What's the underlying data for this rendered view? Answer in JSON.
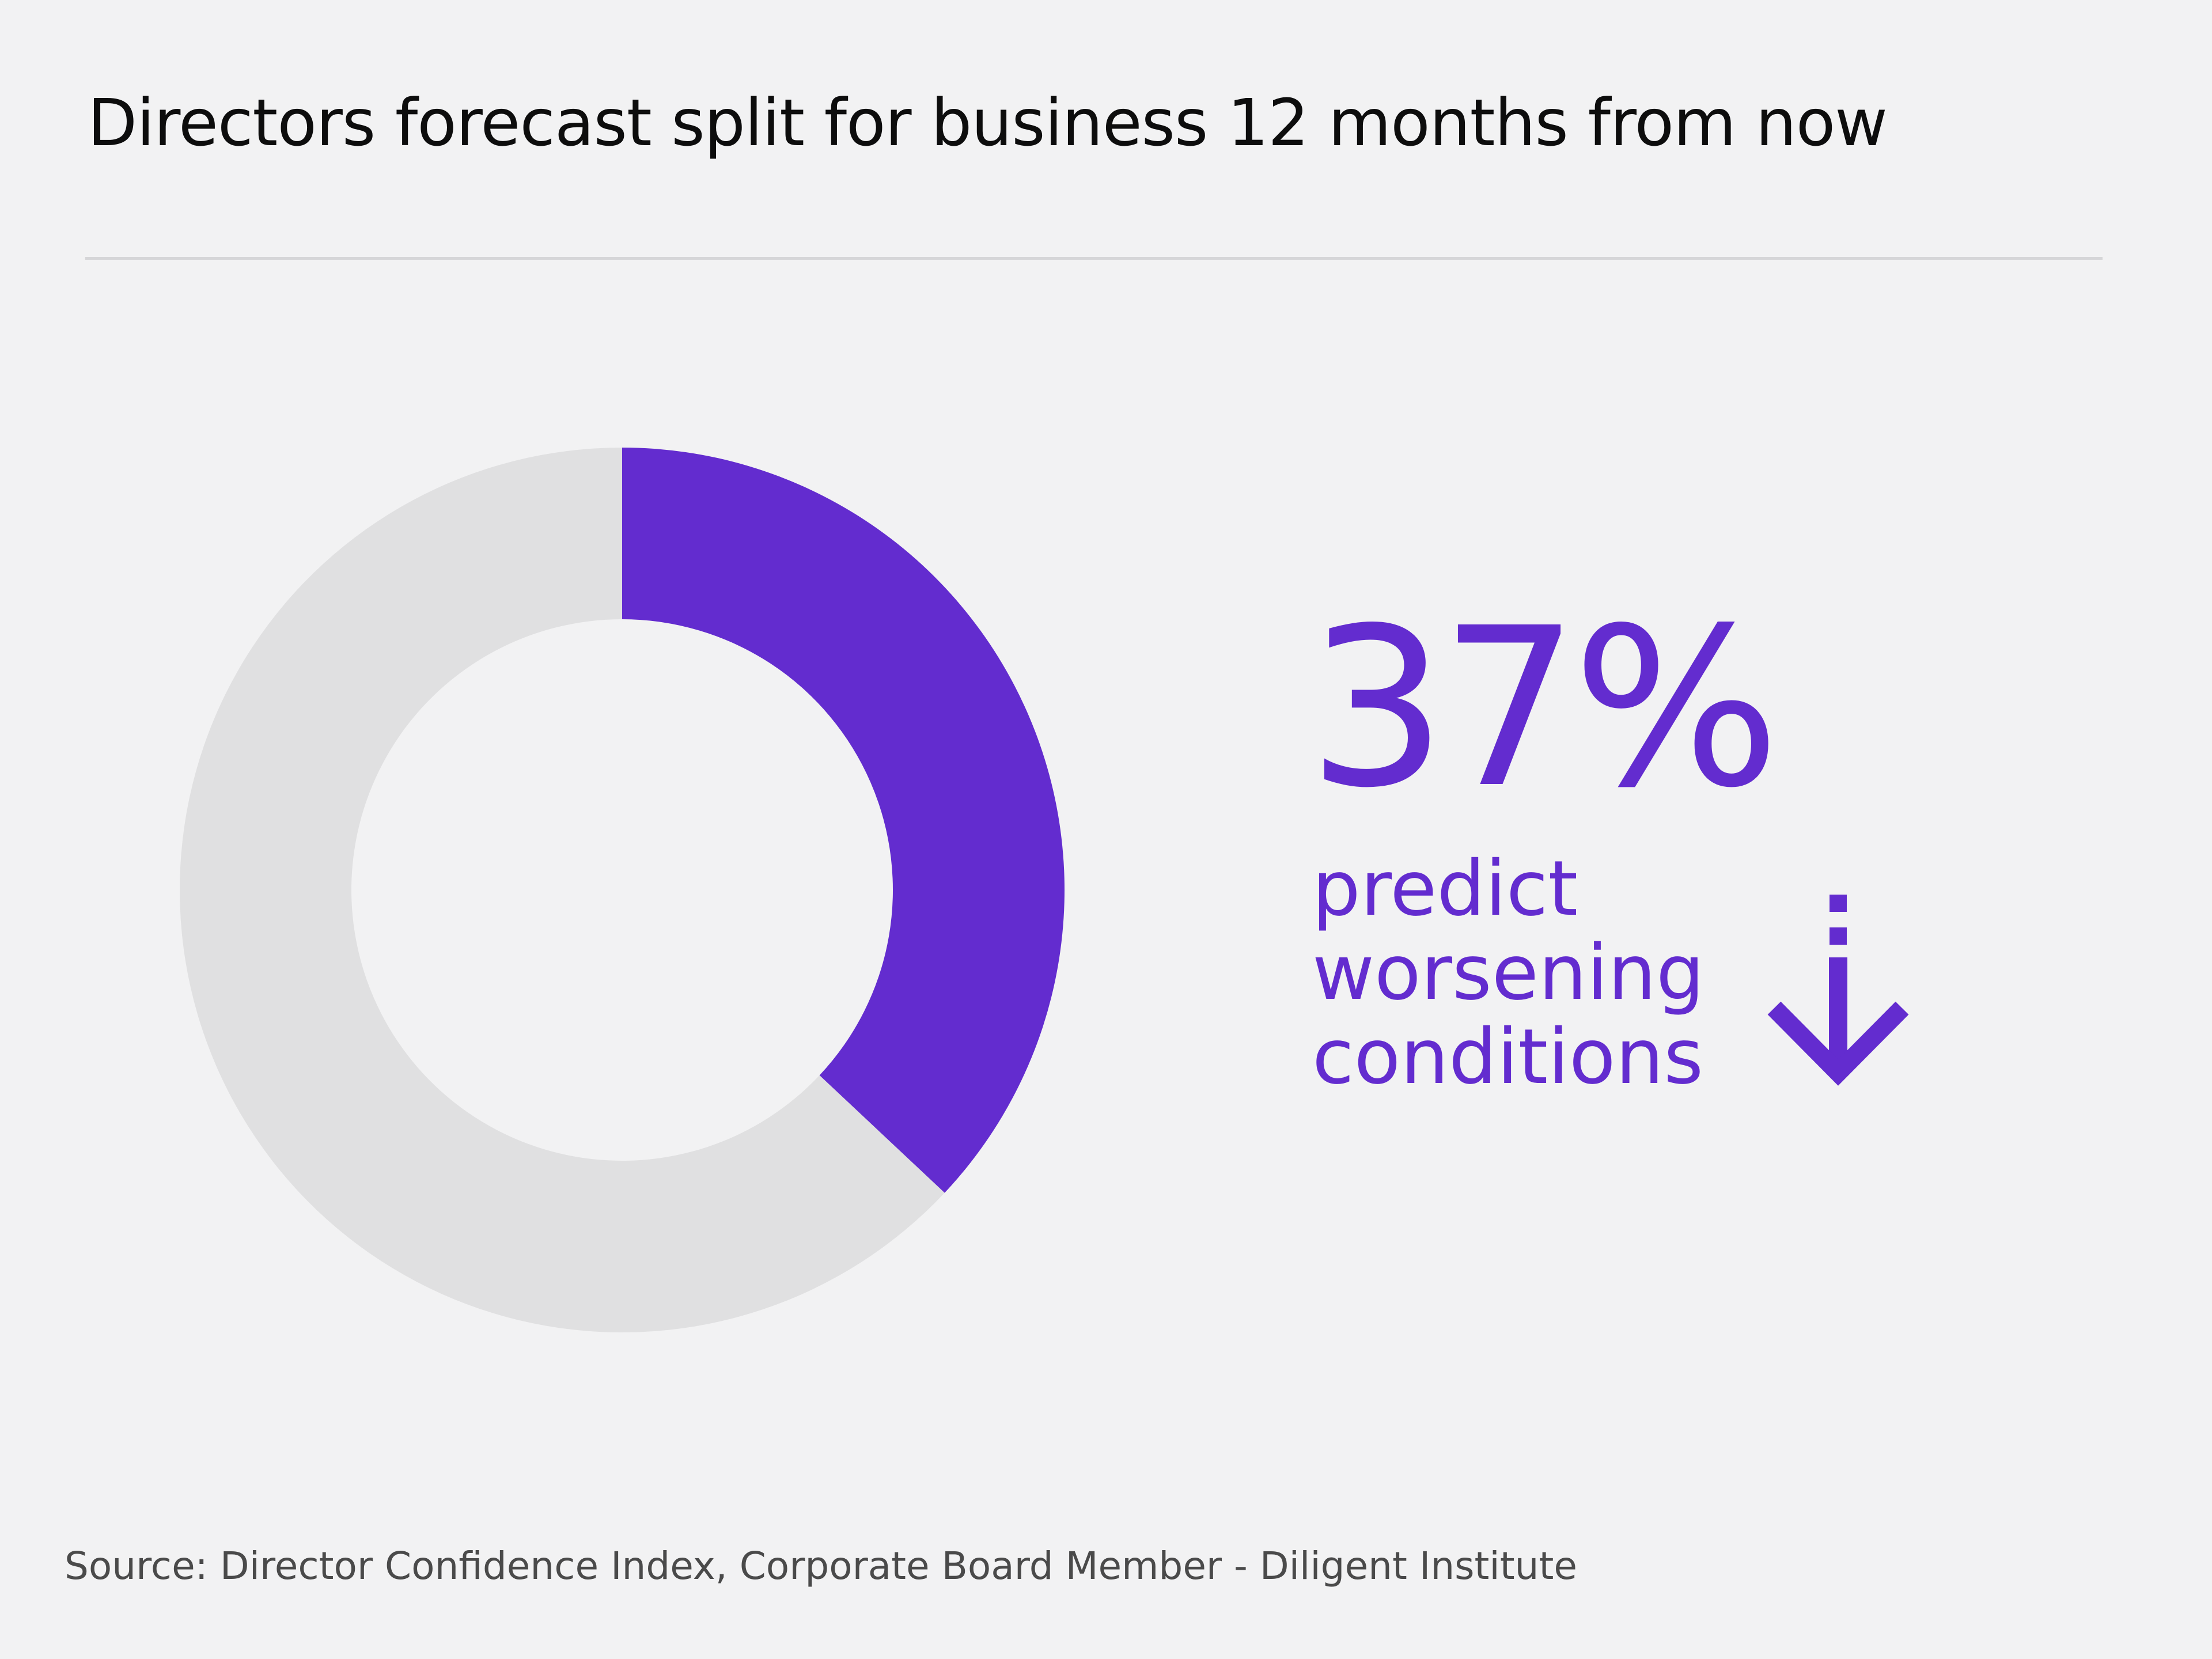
{
  "chart_data": {
    "type": "pie",
    "style": "donut",
    "title": "Directors forecast split for business 12 months from now",
    "slices": [
      {
        "label": "predict worsening conditions",
        "value": 37,
        "color": "#632ccf"
      },
      {
        "value": 63,
        "color": "#e0e0e1"
      }
    ],
    "highlight": {
      "value_text": "37%",
      "caption_lines": [
        "predict",
        "worsening",
        "conditions"
      ],
      "icon": "arrow-down-icon"
    },
    "source": "Source: Director Confidence Index, Corporate Board Member - Diligent Institute",
    "grid": false,
    "legend": "none"
  },
  "colors": {
    "accent": "#632ccf",
    "remainder": "#e0e0e1",
    "background": "#f2f2f3"
  }
}
